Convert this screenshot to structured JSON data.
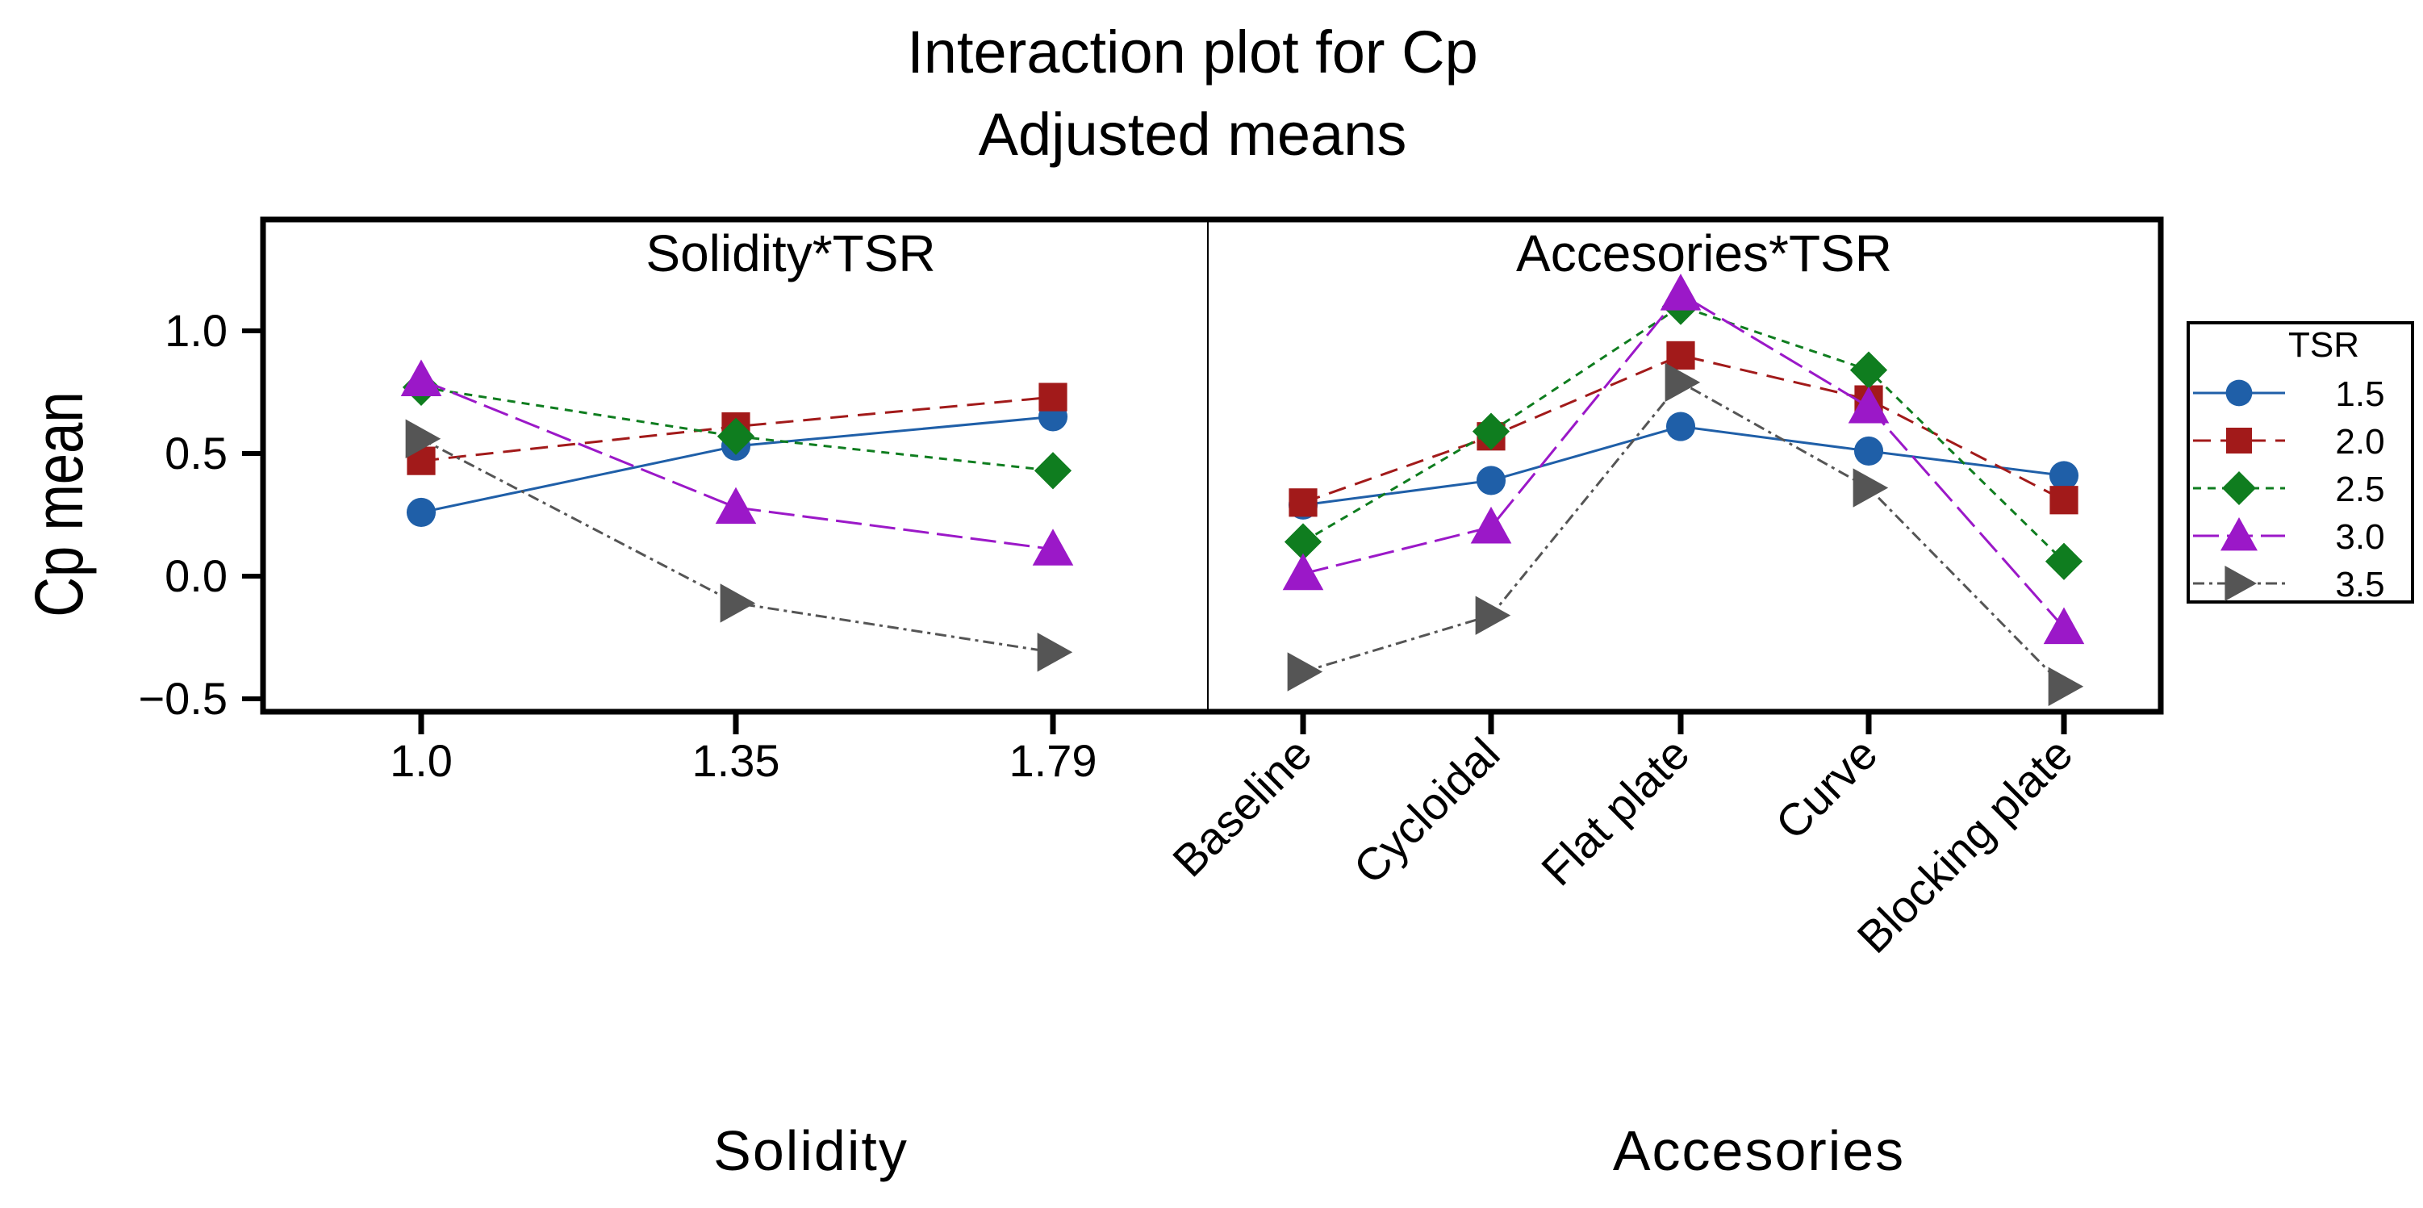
{
  "title": "Interaction plot for Cp",
  "subtitle": "Adjusted  means",
  "ylabel": "Cp mean",
  "ylim": [
    -0.55,
    1.4
  ],
  "yticks": [
    -0.5,
    0.0,
    0.5,
    1.0
  ],
  "ytick_labels": [
    "−0.5",
    "0.0",
    "0.5",
    "1.0"
  ],
  "legend": {
    "title": "TSR",
    "entries": [
      "1.5",
      "2.0",
      "2.5",
      "3.0",
      "3.5"
    ]
  },
  "series_style": [
    {
      "name": "1.5",
      "color": "#1f5fa8",
      "marker": "circle",
      "dash": ""
    },
    {
      "name": "2.0",
      "color": "#a21a1a",
      "marker": "square",
      "dash": "22,12"
    },
    {
      "name": "2.5",
      "color": "#0f7d1f",
      "marker": "diamond",
      "dash": "10,8"
    },
    {
      "name": "3.0",
      "color": "#9b18c8",
      "marker": "triangle-up",
      "dash": "32,10"
    },
    {
      "name": "3.5",
      "color": "#555555",
      "marker": "triangle-right",
      "dash": "14,6,4,6"
    }
  ],
  "chart_data": [
    {
      "type": "line",
      "title": "Solidity*TSR",
      "xlabel": "Solidity",
      "ylabel": "Cp mean",
      "categories": [
        "1.0",
        "1.35",
        "1.79"
      ],
      "ylim": [
        -0.55,
        1.4
      ],
      "series": [
        {
          "name": "1.5",
          "values": [
            0.26,
            0.53,
            0.65
          ]
        },
        {
          "name": "2.0",
          "values": [
            0.47,
            0.61,
            0.73
          ]
        },
        {
          "name": "2.5",
          "values": [
            0.77,
            0.57,
            0.43
          ]
        },
        {
          "name": "3.0",
          "values": [
            0.8,
            0.28,
            0.11
          ]
        },
        {
          "name": "3.5",
          "values": [
            0.56,
            -0.11,
            -0.31
          ]
        }
      ]
    },
    {
      "type": "line",
      "title": "Accesories*TSR",
      "xlabel": "Accesories",
      "ylabel": "Cp mean",
      "categories": [
        "Baseline",
        "Cycloidal",
        "Flat plate",
        "Curve",
        "Blocking plate"
      ],
      "ylim": [
        -0.55,
        1.4
      ],
      "series": [
        {
          "name": "1.5",
          "values": [
            0.29,
            0.39,
            0.61,
            0.51,
            0.41
          ]
        },
        {
          "name": "2.0",
          "values": [
            0.3,
            0.57,
            0.9,
            0.72,
            0.31
          ]
        },
        {
          "name": "2.5",
          "values": [
            0.14,
            0.59,
            1.1,
            0.84,
            0.06
          ]
        },
        {
          "name": "3.0",
          "values": [
            0.01,
            0.2,
            1.15,
            0.69,
            -0.21
          ]
        },
        {
          "name": "3.5",
          "values": [
            -0.39,
            -0.16,
            0.79,
            0.36,
            -0.45
          ]
        }
      ]
    }
  ]
}
